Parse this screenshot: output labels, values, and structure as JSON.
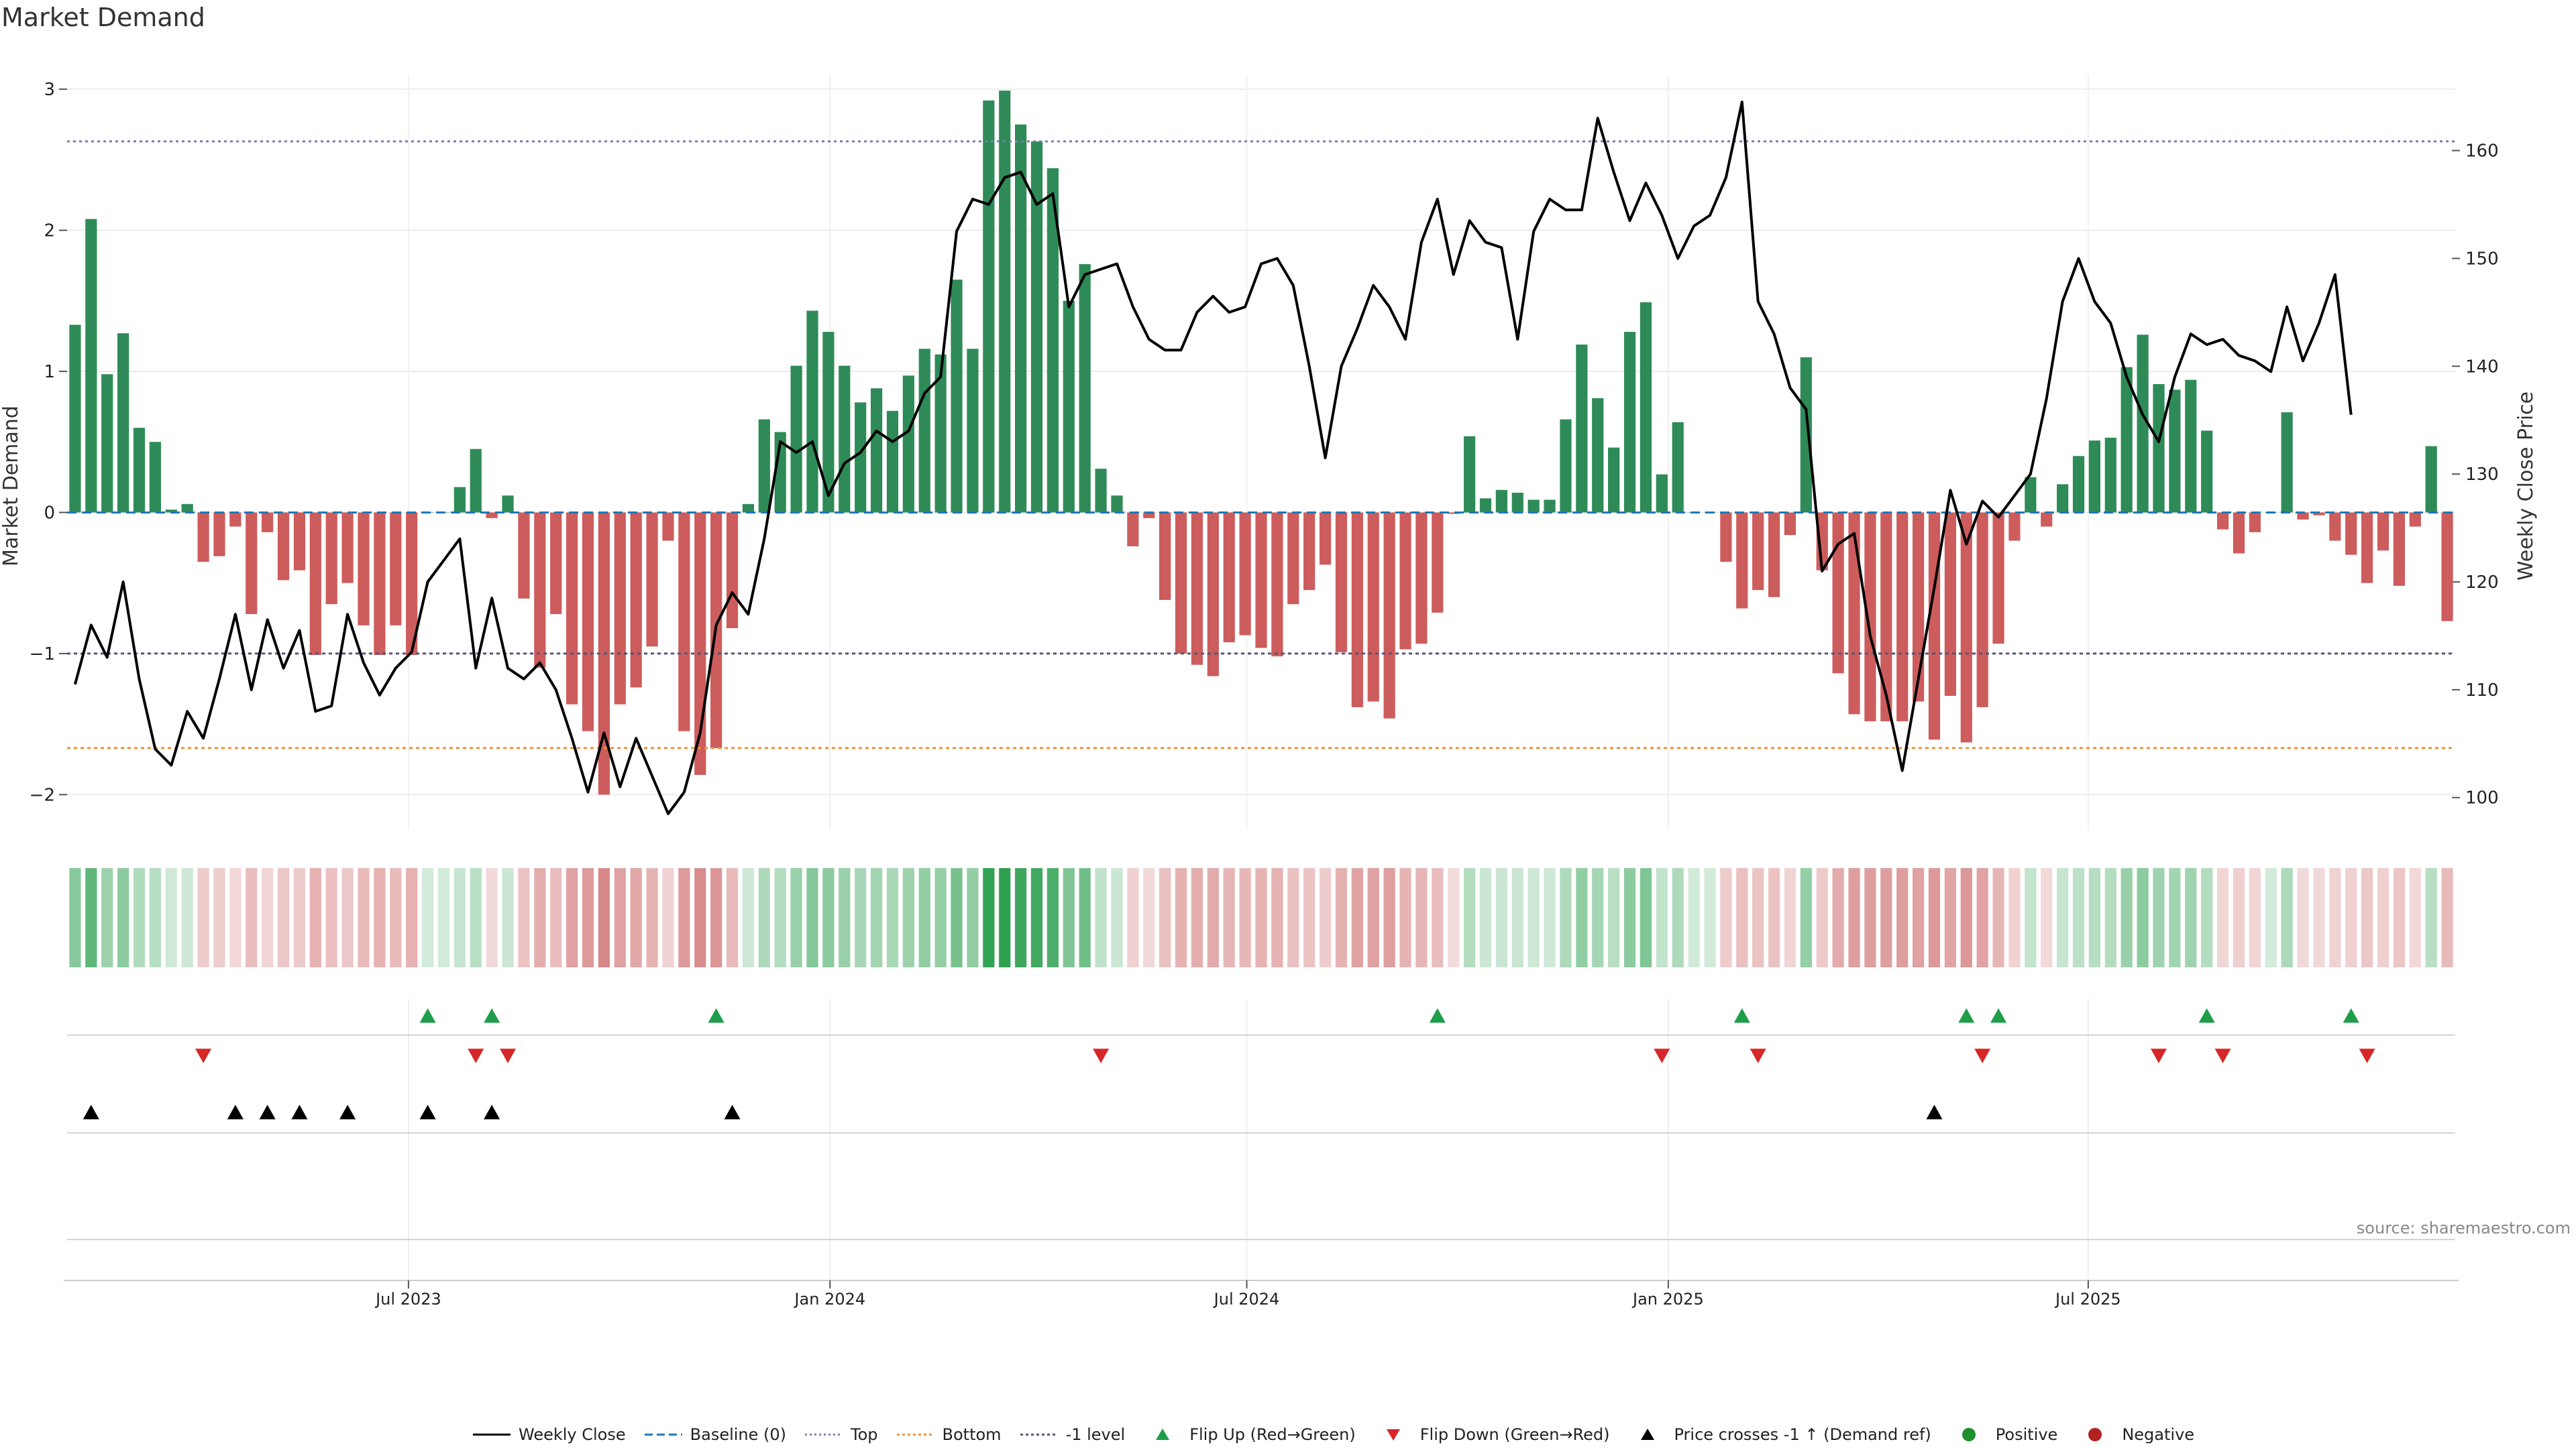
{
  "chart_data": {
    "type": "bar",
    "title": "Market Demand",
    "ylabel": "Market Demand",
    "y2label": "Weekly Close Price",
    "ylim": [
      -2.25,
      3.1
    ],
    "y2lim": [
      97,
      167
    ],
    "yticks": [
      -2,
      -1,
      0,
      1,
      2,
      3
    ],
    "y2ticks": [
      100,
      110,
      120,
      130,
      140,
      150,
      160
    ],
    "ytick_labels": [
      "−2",
      "−1",
      "0",
      "1",
      "2",
      "3"
    ],
    "y2tick_labels": [
      "100",
      "110",
      "120",
      "130",
      "140",
      "150",
      "160"
    ],
    "xtick_labels": [
      "Jul 2023",
      "Jan 2024",
      "Jul 2024",
      "Jan 2025",
      "Jul 2025"
    ],
    "xtick_index": [
      21.3,
      47.6,
      73.6,
      99.9,
      126.1
    ],
    "reference_lines": {
      "top": 2.63,
      "minus_one": -1.0,
      "bottom": -1.67,
      "baseline": 0
    },
    "demand": [
      1.33,
      2.08,
      0.98,
      1.27,
      0.6,
      0.5,
      0.02,
      0.06,
      -0.35,
      -0.31,
      -0.1,
      -0.72,
      -0.14,
      -0.48,
      -0.41,
      -1.01,
      -0.65,
      -0.5,
      -0.8,
      -1.01,
      -0.8,
      -1.01,
      0.0,
      0.0,
      0.18,
      0.45,
      -0.04,
      0.12,
      -0.61,
      -1.1,
      -0.72,
      -1.36,
      -1.55,
      -2.0,
      -1.36,
      -1.24,
      -0.95,
      -0.2,
      -1.55,
      -1.86,
      -1.67,
      -0.82,
      0.06,
      0.66,
      0.57,
      1.04,
      1.43,
      1.28,
      1.04,
      0.78,
      0.88,
      0.72,
      0.97,
      1.16,
      1.12,
      1.65,
      1.16,
      2.92,
      2.99,
      2.75,
      2.63,
      2.44,
      1.5,
      1.76,
      0.31,
      0.12,
      -0.24,
      -0.04,
      -0.62,
      -1.0,
      -1.08,
      -1.16,
      -0.92,
      -0.87,
      -0.96,
      -1.02,
      -0.65,
      -0.55,
      -0.37,
      -0.99,
      -1.38,
      -1.34,
      -1.46,
      -0.97,
      -0.93,
      -0.71,
      -0.01,
      0.54,
      0.1,
      0.16,
      0.14,
      0.09,
      0.09,
      0.66,
      1.19,
      0.81,
      0.46,
      1.28,
      1.49,
      0.27,
      0.64,
      0.0,
      0.0,
      -0.35,
      -0.68,
      -0.55,
      -0.6,
      -0.16,
      1.1,
      -0.41,
      -1.14,
      -1.43,
      -1.48,
      -1.48,
      -1.48,
      -1.34,
      -1.61,
      -1.3,
      -1.63,
      -1.38,
      -0.93,
      -0.2,
      0.25,
      -0.1,
      0.2,
      0.4,
      0.51,
      0.53,
      1.03,
      1.26,
      0.91,
      0.87,
      0.94,
      0.58,
      -0.12,
      -0.29,
      -0.14,
      0.0,
      0.71,
      -0.05,
      -0.02,
      -0.2,
      -0.3,
      -0.5,
      -0.27,
      -0.52,
      -0.1,
      0.47,
      -0.77
    ],
    "weekly_close": [
      110.5,
      116,
      113,
      120,
      111,
      104.5,
      103,
      108,
      105.5,
      111,
      117,
      110,
      116.5,
      112,
      115.5,
      108,
      108.5,
      117,
      112.5,
      109.5,
      112,
      113.5,
      120,
      122,
      124,
      112,
      118.5,
      112,
      111,
      112.5,
      110,
      105.5,
      100.5,
      106,
      101,
      105.5,
      102,
      98.5,
      100.5,
      106,
      116,
      119,
      117,
      124,
      133,
      132,
      133,
      128,
      131,
      132,
      134,
      133,
      134,
      137.5,
      139,
      152.5,
      155.5,
      155,
      157.5,
      158,
      155,
      156,
      145.5,
      148.5,
      149,
      149.5,
      145.5,
      142.5,
      141.5,
      141.5,
      145,
      146.5,
      145,
      145.5,
      149.5,
      150,
      147.5,
      140,
      131.5,
      140,
      143.5,
      147.5,
      145.5,
      142.5,
      151.5,
      155.5,
      148.5,
      153.5,
      151.5,
      151,
      142.5,
      152.5,
      155.5,
      154.5,
      154.5,
      163,
      158,
      153.5,
      157,
      154,
      150,
      153,
      154,
      157.5,
      164.5,
      146,
      143,
      138,
      136,
      121,
      123.5,
      124.5,
      115,
      109.5,
      102.5,
      111,
      119.5,
      128.5,
      123.5,
      127.5,
      126,
      128,
      130,
      137,
      146,
      150,
      146,
      144,
      139,
      135.5,
      133,
      139,
      143,
      142,
      142.5,
      141,
      140.5,
      139.5,
      145.5,
      140.5,
      144,
      148.5,
      135.5
    ],
    "flip_up_index": [
      22,
      26,
      40,
      85,
      104,
      118,
      120,
      133,
      142
    ],
    "flip_down_index": [
      8,
      25,
      27,
      64,
      99,
      105,
      119,
      130,
      134,
      143
    ],
    "price_cross_index": [
      1,
      10,
      12,
      14,
      17,
      22,
      26,
      41,
      116
    ],
    "legend": [
      "Weekly Close",
      "Baseline (0)",
      "Top",
      "Bottom",
      "-1 level",
      "Flip Up (Red→Green)",
      "Flip Down (Green→Red)",
      "Price crosses -1 ↑ (Demand ref)",
      "Positive",
      "Negative"
    ],
    "colors": {
      "positive": "#2e8b57",
      "negative": "#cd5c5c",
      "close": "#000000",
      "top": "#7b7bb5",
      "bottom": "#e8943a",
      "minus_one": "#555577",
      "baseline": "#1f77b4",
      "flip_up": "#1e9e4a",
      "flip_down": "#d62728",
      "pos_dot": "#1e8f2e",
      "neg_dot": "#b22222"
    }
  },
  "source": "source: sharemaestro.com"
}
